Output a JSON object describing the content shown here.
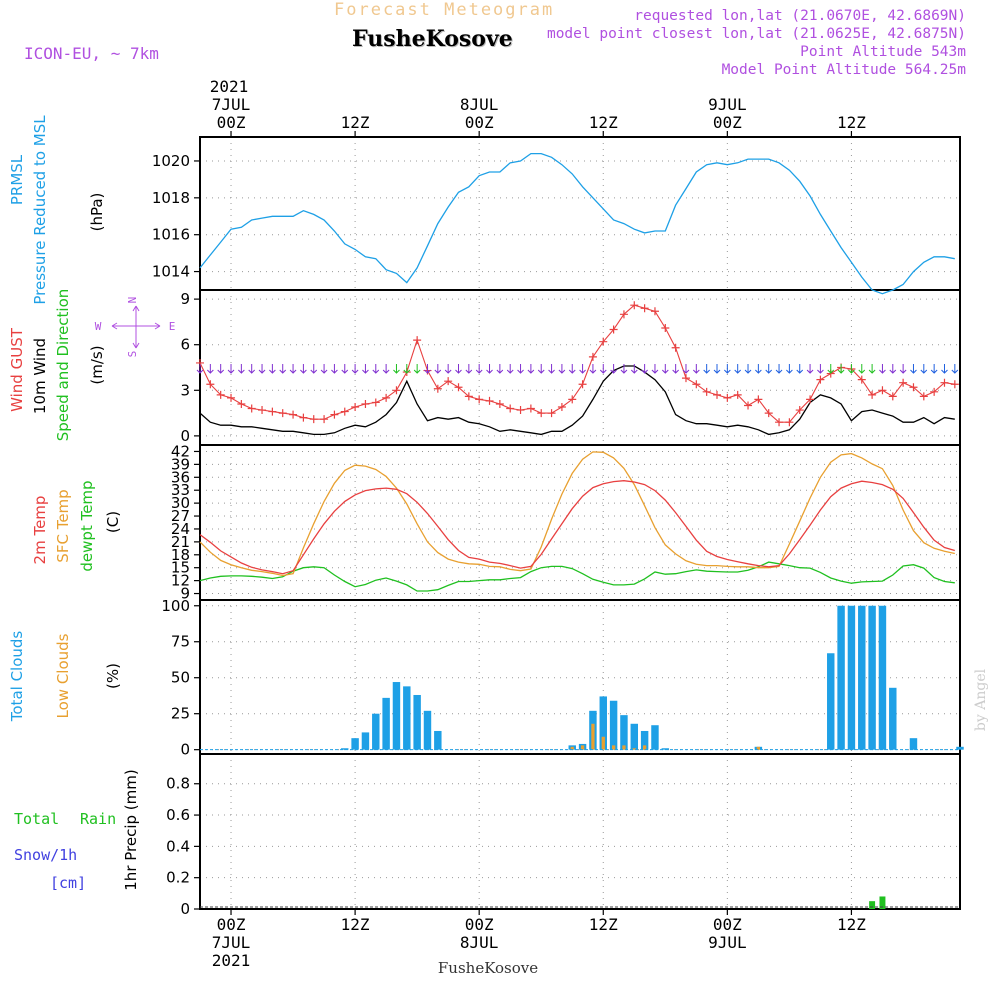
{
  "header": {
    "title": "Forecast Meteogram",
    "station": "FusheKosove",
    "model": "ICON-EU, ~ 7km",
    "requested": "requested lon,lat (21.0670E, 42.6869N)",
    "closest": "model point closest lon,lat (21.0625E, 42.6875N)",
    "altitude": "Point Altitude 543m",
    "model_altitude": "Model Point Altitude 564.25m",
    "credit": "by Angel",
    "footer_station": "FusheKosove"
  },
  "time_axis": {
    "top_year": "2021",
    "labels": [
      {
        "hour": 0,
        "time": "00Z",
        "day": "7JUL",
        "year": "2021"
      },
      {
        "hour": 12,
        "time": "12Z",
        "day": "",
        "year": ""
      },
      {
        "hour": 24,
        "time": "00Z",
        "day": "8JUL",
        "year": ""
      },
      {
        "hour": 36,
        "time": "12Z",
        "day": "",
        "year": ""
      },
      {
        "hour": 48,
        "time": "00Z",
        "day": "9JUL",
        "year": ""
      },
      {
        "hour": 60,
        "time": "12Z",
        "day": "",
        "year": ""
      }
    ],
    "range_hours": [
      -3,
      70.5
    ]
  },
  "panels": {
    "pressure": {
      "labels": [
        "PRMSL",
        "Pressure Reduced to MSL",
        "(hPa)"
      ],
      "colors": [
        "#1ea0e6",
        "#1ea0e6",
        "#000000"
      ],
      "yticks": [
        1014,
        1016,
        1018,
        1020
      ],
      "ylim": [
        1013.0,
        1021.3
      ]
    },
    "wind": {
      "labels": [
        "Wind GUST",
        "10m Wind",
        "Speed and Direction",
        "(m/s)"
      ],
      "colors": [
        "#e84040",
        "#000000",
        "#20c020",
        "#000000"
      ],
      "compass": {
        "n": "N",
        "s": "S",
        "w": "W",
        "e": "E"
      },
      "yticks": [
        0,
        3,
        6,
        9
      ],
      "ylim": [
        -0.6,
        9.6
      ]
    },
    "temp": {
      "labels": [
        "2m Temp",
        "SFC Temp",
        "dewpt Temp",
        "(C)"
      ],
      "colors": [
        "#e84040",
        "#e8a030",
        "#20c020",
        "#000000"
      ],
      "yticks": [
        9,
        12,
        15,
        18,
        21,
        24,
        27,
        30,
        33,
        36,
        39,
        42
      ],
      "ylim": [
        7.5,
        43.5
      ]
    },
    "clouds": {
      "labels": [
        "Total Clouds",
        "Low Clouds",
        "(%)"
      ],
      "colors": [
        "#1ea0e6",
        "#e8a030",
        "#000000"
      ],
      "yticks": [
        0,
        25,
        50,
        75,
        100
      ],
      "ylim": [
        -3,
        104
      ]
    },
    "precip": {
      "labels": [
        "Total",
        "Rain",
        "Snow/1h",
        "[cm]",
        "1hr Precip (mm)"
      ],
      "colors": [
        "#20c020",
        "#20c020",
        "#4040e0",
        "#4040e0",
        "#000000"
      ],
      "yticks": [
        "0",
        "0.2",
        "0.4",
        "0.6",
        "0.8"
      ],
      "ylim": [
        0,
        0.99
      ]
    }
  },
  "chart_data": {
    "type": "line",
    "x_units": "hours from 2021-07-07 00Z",
    "pressure_hpa": {
      "x": [
        -3,
        -2,
        -1,
        0,
        1,
        2,
        3,
        4,
        5,
        6,
        7,
        8,
        9,
        10,
        11,
        12,
        13,
        14,
        15,
        16,
        17,
        18,
        19,
        20,
        21,
        22,
        23,
        24,
        25,
        26,
        27,
        28,
        29,
        30,
        31,
        32,
        33,
        34,
        35,
        36,
        37,
        38,
        39,
        40,
        41,
        42,
        43,
        44,
        45,
        46,
        47,
        48,
        49,
        50,
        51,
        52,
        53,
        54,
        55,
        56,
        57,
        58,
        59,
        60,
        61,
        62,
        63,
        64,
        65,
        66,
        67,
        68,
        69,
        70
      ],
      "values": [
        1014.2,
        1014.9,
        1015.6,
        1016.3,
        1016.4,
        1016.8,
        1016.9,
        1017.0,
        1017.0,
        1017.0,
        1017.3,
        1017.1,
        1016.8,
        1016.2,
        1015.5,
        1015.2,
        1014.8,
        1014.7,
        1014.1,
        1013.9,
        1013.4,
        1014.2,
        1015.4,
        1016.6,
        1017.5,
        1018.3,
        1018.6,
        1019.2,
        1019.4,
        1019.4,
        1019.9,
        1020.0,
        1020.4,
        1020.4,
        1020.2,
        1019.8,
        1019.3,
        1018.6,
        1018.0,
        1017.4,
        1016.8,
        1016.6,
        1016.3,
        1016.1,
        1016.2,
        1016.2,
        1017.6,
        1018.5,
        1019.4,
        1019.8,
        1019.9,
        1019.8,
        1019.9,
        1020.1,
        1020.1,
        1020.1,
        1019.9,
        1019.5,
        1018.9,
        1018.1,
        1017.1,
        1016.2,
        1015.3,
        1014.5,
        1013.7,
        1013.0,
        1012.8,
        1013.0,
        1013.3,
        1014.0,
        1014.5,
        1014.8,
        1014.8,
        1014.7
      ]
    },
    "wind": {
      "x": [
        -3,
        -2,
        -1,
        0,
        1,
        2,
        3,
        4,
        5,
        6,
        7,
        8,
        9,
        10,
        11,
        12,
        13,
        14,
        15,
        16,
        17,
        18,
        19,
        20,
        21,
        22,
        23,
        24,
        25,
        26,
        27,
        28,
        29,
        30,
        31,
        32,
        33,
        34,
        35,
        36,
        37,
        38,
        39,
        40,
        41,
        42,
        43,
        44,
        45,
        46,
        47,
        48,
        49,
        50,
        51,
        52,
        53,
        54,
        55,
        56,
        57,
        58,
        59,
        60,
        61,
        62,
        63,
        64,
        65,
        66,
        67,
        68,
        69,
        70
      ],
      "gust_ms": [
        4.8,
        3.4,
        2.7,
        2.5,
        2.1,
        1.8,
        1.7,
        1.6,
        1.5,
        1.4,
        1.2,
        1.1,
        1.1,
        1.4,
        1.6,
        1.9,
        2.1,
        2.2,
        2.5,
        3.0,
        4.2,
        6.3,
        4.3,
        3.1,
        3.6,
        3.2,
        2.6,
        2.4,
        2.3,
        2.1,
        1.8,
        1.7,
        1.8,
        1.5,
        1.5,
        1.9,
        2.4,
        3.4,
        5.2,
        6.2,
        7.0,
        8.0,
        8.6,
        8.4,
        8.2,
        7.1,
        5.8,
        3.8,
        3.4,
        2.9,
        2.7,
        2.5,
        2.7,
        2.0,
        2.4,
        1.5,
        0.9,
        0.9,
        1.7,
        2.4,
        3.7,
        4.1,
        4.5,
        4.4,
        3.7,
        2.7,
        3.0,
        2.6,
        3.5,
        3.2,
        2.6,
        2.9,
        3.5,
        3.4
      ],
      "speed_ms": [
        1.5,
        0.9,
        0.7,
        0.7,
        0.6,
        0.6,
        0.5,
        0.4,
        0.3,
        0.3,
        0.2,
        0.1,
        0.1,
        0.2,
        0.5,
        0.7,
        0.6,
        0.9,
        1.4,
        2.2,
        3.6,
        2.1,
        1.0,
        1.2,
        1.1,
        1.2,
        0.9,
        0.8,
        0.6,
        0.3,
        0.4,
        0.3,
        0.2,
        0.1,
        0.3,
        0.3,
        0.7,
        1.3,
        2.4,
        3.6,
        4.3,
        4.6,
        4.6,
        4.2,
        3.7,
        2.9,
        1.4,
        1.0,
        0.8,
        0.8,
        0.7,
        0.6,
        0.7,
        0.6,
        0.4,
        0.1,
        0.2,
        0.4,
        1.1,
        2.2,
        2.7,
        2.5,
        2.1,
        1.0,
        1.6,
        1.7,
        1.5,
        1.3,
        0.9,
        0.9,
        1.2,
        0.8,
        1.2,
        1.1
      ]
    },
    "temperature_c": {
      "x": [
        -3,
        -2,
        -1,
        0,
        1,
        2,
        3,
        4,
        5,
        6,
        7,
        8,
        9,
        10,
        11,
        12,
        13,
        14,
        15,
        16,
        17,
        18,
        19,
        20,
        21,
        22,
        23,
        24,
        25,
        26,
        27,
        28,
        29,
        30,
        31,
        32,
        33,
        34,
        35,
        36,
        37,
        38,
        39,
        40,
        41,
        42,
        43,
        44,
        45,
        46,
        47,
        48,
        49,
        50,
        51,
        52,
        53,
        54,
        55,
        56,
        57,
        58,
        59,
        60,
        61,
        62,
        63,
        64,
        65,
        66,
        67,
        68,
        69,
        70
      ],
      "t2m": [
        22.7,
        20.9,
        18.9,
        17.5,
        16.1,
        15.1,
        14.5,
        14.1,
        13.6,
        14.3,
        18.0,
        21.7,
        25.2,
        28.1,
        30.4,
        31.9,
        32.9,
        33.3,
        33.5,
        33.2,
        32.2,
        30.2,
        27.6,
        24.6,
        21.5,
        19.0,
        17.4,
        17.0,
        16.3,
        16.0,
        15.5,
        14.9,
        15.3,
        18.1,
        21.7,
        25.2,
        28.7,
        31.6,
        33.6,
        34.5,
        35.0,
        35.2,
        34.9,
        34.3,
        32.9,
        30.7,
        27.8,
        24.6,
        21.4,
        18.8,
        17.6,
        16.9,
        16.4,
        15.9,
        15.5,
        15.2,
        15.5,
        18.2,
        21.5,
        24.9,
        28.4,
        31.5,
        33.5,
        34.5,
        35.1,
        34.8,
        34.3,
        33.2,
        31.1,
        27.8,
        24.4,
        21.4,
        19.7,
        19.0
      ],
      "sfc": [
        21.0,
        18.6,
        16.7,
        15.7,
        15.0,
        14.4,
        14.1,
        13.7,
        13.2,
        13.6,
        19.6,
        25.2,
        30.4,
        34.6,
        37.6,
        38.8,
        38.6,
        37.8,
        36.2,
        33.5,
        29.8,
        25.2,
        21.0,
        18.5,
        17.0,
        16.3,
        15.9,
        15.8,
        15.3,
        15.2,
        14.6,
        14.3,
        14.7,
        19.8,
        26.3,
        32.1,
        36.9,
        40.2,
        41.9,
        41.8,
        40.5,
        38.1,
        34.3,
        29.4,
        24.3,
        20.3,
        18.2,
        16.6,
        15.8,
        15.5,
        15.5,
        15.3,
        15.2,
        15.2,
        15.0,
        15.0,
        15.3,
        20.5,
        25.8,
        31.2,
        36.0,
        39.5,
        41.2,
        41.5,
        40.5,
        39.1,
        38.0,
        34.1,
        28.4,
        23.6,
        20.8,
        19.5,
        18.8,
        18.3
      ],
      "dewpt": [
        12.0,
        12.6,
        13.0,
        13.1,
        13.1,
        13.0,
        12.8,
        12.5,
        12.9,
        14.2,
        15.0,
        15.2,
        15.0,
        13.3,
        11.8,
        10.6,
        11.1,
        12.1,
        12.6,
        11.9,
        11.0,
        9.6,
        9.6,
        9.9,
        10.9,
        11.8,
        11.8,
        12.0,
        12.2,
        12.2,
        12.5,
        12.7,
        14.1,
        15.0,
        15.3,
        15.3,
        14.8,
        13.6,
        12.3,
        11.6,
        11.0,
        11.0,
        11.2,
        12.4,
        14.0,
        13.5,
        13.6,
        14.1,
        14.5,
        14.2,
        14.1,
        14.0,
        14.0,
        14.4,
        15.2,
        16.3,
        15.9,
        15.5,
        15.0,
        14.9,
        13.9,
        12.6,
        11.9,
        11.4,
        11.7,
        11.8,
        11.9,
        13.3,
        15.4,
        15.7,
        14.9,
        12.7,
        11.8,
        11.5
      ]
    },
    "total_clouds_pct": {
      "x": [
        11,
        12,
        13,
        14,
        15,
        16,
        17,
        18,
        19,
        20,
        33,
        34,
        35,
        36,
        37,
        38,
        39,
        40,
        41,
        42,
        51,
        58,
        59,
        60,
        61,
        62,
        63,
        64,
        66,
        70.5
      ],
      "values": [
        1,
        8,
        12,
        25,
        36,
        47,
        44,
        38,
        27,
        13,
        3,
        4,
        27,
        37,
        34,
        24,
        18,
        13,
        17,
        1,
        2,
        67,
        100,
        100,
        100,
        100,
        100,
        43,
        8,
        2
      ]
    },
    "low_clouds_pct": {
      "x": [
        33,
        34,
        35,
        36,
        37,
        38,
        39,
        40,
        51
      ],
      "values": [
        2,
        3,
        18,
        9,
        3,
        3,
        1,
        3,
        2
      ]
    },
    "precip_mm": {
      "x": [
        62,
        63
      ],
      "values": [
        0.05,
        0.08
      ]
    }
  }
}
